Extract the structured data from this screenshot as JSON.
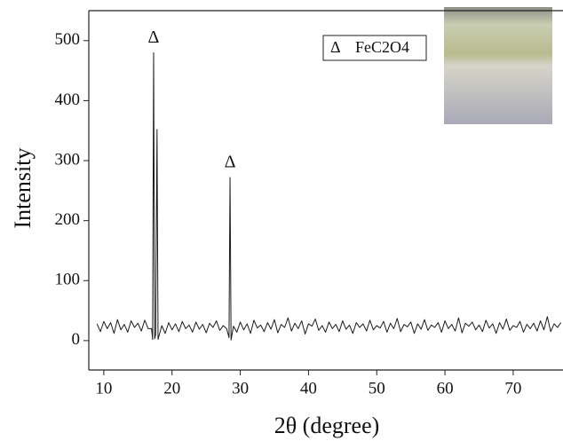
{
  "chart_data": {
    "type": "line",
    "x_label": "2θ (degree)",
    "y_label": "Intensity",
    "legend_symbol": "Δ",
    "series": [
      {
        "name": "FeC2O4",
        "color": "#1a1a1a",
        "x": [
          9,
          9.5,
          10,
          10.5,
          11,
          11.5,
          12,
          12.5,
          13,
          13.5,
          14,
          14.5,
          15,
          15.5,
          16,
          16.5,
          17,
          17.15,
          17.3,
          17.45,
          17.6,
          17.8,
          17.95,
          18.5,
          19,
          19.5,
          20,
          20.5,
          21,
          21.5,
          22,
          22.5,
          23,
          23.5,
          24,
          24.5,
          25,
          25.5,
          26,
          26.5,
          27,
          27.5,
          28,
          28.35,
          28.5,
          28.65,
          29,
          29.5,
          30,
          30.5,
          31,
          31.5,
          32,
          32.5,
          33,
          33.5,
          34,
          34.5,
          35,
          35.5,
          36,
          36.5,
          37,
          37.5,
          38,
          38.5,
          39,
          39.5,
          40,
          40.5,
          41,
          41.5,
          42,
          42.5,
          43,
          43.5,
          44,
          44.5,
          45,
          45.5,
          46,
          46.5,
          47,
          47.5,
          48,
          48.5,
          49,
          49.5,
          50,
          50.5,
          51,
          51.5,
          52,
          52.5,
          53,
          53.5,
          54,
          54.5,
          55,
          55.5,
          56,
          56.5,
          57,
          57.5,
          58,
          58.5,
          59,
          59.5,
          60,
          60.5,
          61,
          61.5,
          62,
          62.5,
          63,
          63.5,
          64,
          64.5,
          65,
          65.5,
          66,
          66.5,
          67,
          67.5,
          68,
          68.5,
          69,
          69.5,
          70,
          70.5,
          71,
          71.5,
          72,
          72.5,
          73,
          73.5,
          74,
          74.5,
          75,
          75.5,
          76,
          76.5,
          77
        ],
        "values": [
          28,
          15,
          32,
          20,
          30,
          12,
          35,
          18,
          27,
          14,
          33,
          22,
          29,
          16,
          34,
          20,
          20,
          2,
          480,
          3,
          10,
          352,
          2,
          25,
          12,
          30,
          18,
          28,
          15,
          32,
          20,
          26,
          14,
          31,
          19,
          27,
          13,
          29,
          22,
          33,
          17,
          25,
          20,
          5,
          272,
          1,
          24,
          14,
          31,
          18,
          28,
          12,
          34,
          21,
          26,
          15,
          30,
          19,
          35,
          13,
          27,
          22,
          38,
          16,
          29,
          20,
          33,
          11,
          28,
          24,
          36,
          17,
          25,
          14,
          31,
          20,
          27,
          15,
          33,
          19,
          26,
          12,
          30,
          22,
          28,
          16,
          34,
          18,
          25,
          21,
          32,
          14,
          29,
          20,
          37,
          15,
          27,
          23,
          31,
          12,
          28,
          19,
          35,
          17,
          26,
          22,
          30,
          14,
          33,
          20,
          27,
          16,
          38,
          13,
          29,
          24,
          31,
          18,
          26,
          15,
          34,
          21,
          28,
          12,
          30,
          19,
          36,
          17,
          25,
          22,
          32,
          14,
          27,
          20,
          29,
          16,
          33,
          18,
          40,
          15,
          28,
          22,
          30
        ]
      }
    ],
    "annotations": [
      {
        "text": "Δ",
        "x": 17.3,
        "y": 480
      },
      {
        "text": "Δ",
        "x": 28.5,
        "y": 272
      }
    ],
    "xlim": [
      7.8,
      77.3
    ],
    "ylim": [
      -49,
      550
    ],
    "xticks": [
      10,
      20,
      30,
      40,
      50,
      60,
      70
    ],
    "yticks": [
      0,
      100,
      200,
      300,
      400,
      500
    ],
    "grid": false,
    "legend": "upper-right"
  }
}
